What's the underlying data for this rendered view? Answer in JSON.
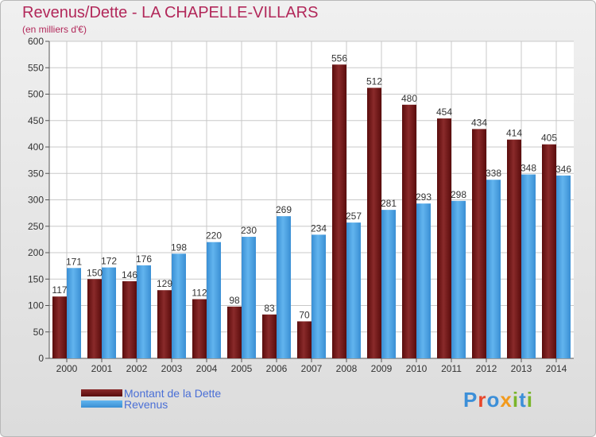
{
  "title": "Revenus/Dette - LA CHAPELLE-VILLARS",
  "subtitle": "(en milliers d'€)",
  "colors": {
    "title": "#b2285a",
    "dette": "#7a1c1c",
    "revenus": "#4aa3e6",
    "legend_text": "#4a6fd6"
  },
  "legend": {
    "dette": "Montant de la Dette",
    "revenus": "Revenus"
  },
  "logo": {
    "text": "Proxiti",
    "letter_colors": [
      "#3c8fd8",
      "#e8462a",
      "#3c8fd8",
      "#f29a1c",
      "#7ab52a",
      "#3c8fd8",
      "#7ab52a"
    ]
  },
  "chart_data": {
    "type": "bar",
    "title": "Revenus/Dette - LA CHAPELLE-VILLARS",
    "subtitle": "(en milliers d'€)",
    "categories": [
      "2000",
      "2001",
      "2002",
      "2003",
      "2004",
      "2005",
      "2006",
      "2007",
      "2008",
      "2009",
      "2010",
      "2011",
      "2012",
      "2013",
      "2014"
    ],
    "series": [
      {
        "name": "Montant de la Dette",
        "values": [
          117,
          150,
          146,
          129,
          112,
          98,
          83,
          70,
          556,
          512,
          480,
          454,
          434,
          414,
          405
        ]
      },
      {
        "name": "Revenus",
        "values": [
          171,
          172,
          176,
          198,
          220,
          230,
          269,
          234,
          257,
          281,
          293,
          298,
          338,
          348,
          346
        ]
      }
    ],
    "ylim": [
      0,
      600
    ],
    "yticks": [
      0,
      50,
      100,
      150,
      200,
      250,
      300,
      350,
      400,
      450,
      500,
      550,
      600
    ],
    "grid": true,
    "legend_position": "bottom-left"
  }
}
